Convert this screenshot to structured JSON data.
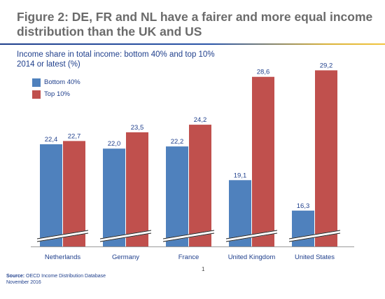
{
  "title": "Figure 2: DE, FR and NL have a fairer and more equal income distribution than the UK and US",
  "subtitle_line1": "Income share in total income: bottom 40% and top 10%",
  "subtitle_line2": "2014 or latest (%)",
  "colors": {
    "bottom": "#4f81bd",
    "top": "#c0504d",
    "text": "#1f3f8c"
  },
  "page_number": "1",
  "source_label": "Source:",
  "source_text": "OECD Income Distribution Database",
  "source_date": "November 2016",
  "chart_data": {
    "type": "bar",
    "categories": [
      "Netherlands",
      "Germany",
      "France",
      "United Kingdom",
      "United States"
    ],
    "series": [
      {
        "name": "Bottom 40%",
        "values": [
          22.4,
          22.0,
          22.2,
          19.1,
          16.3
        ],
        "labels": [
          "22,4",
          "22,0",
          "22,2",
          "19,1",
          "16,3"
        ]
      },
      {
        "name": "Top 10%",
        "values": [
          22.7,
          23.5,
          24.2,
          28.6,
          29.2
        ],
        "labels": [
          "22,7",
          "23,5",
          "24,2",
          "28,6",
          "29,2"
        ]
      }
    ],
    "axis_break": true,
    "ylim": [
      13,
      30
    ],
    "grid": false,
    "legend_position": "top-left"
  }
}
